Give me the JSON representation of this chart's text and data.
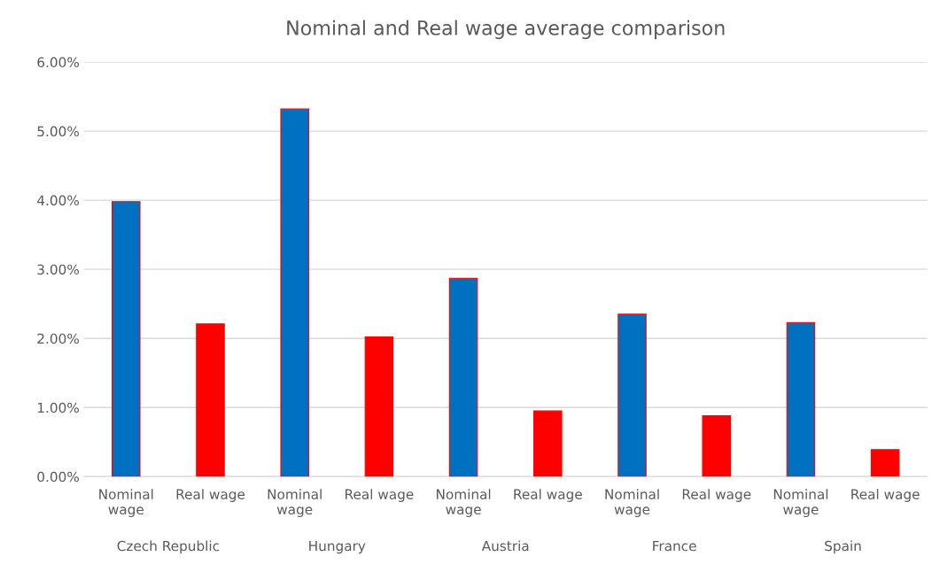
{
  "chart_data": {
    "type": "bar",
    "title": "Nominal and Real wage average comparison",
    "categories": [
      "Nominal wage",
      "Real wage",
      "Nominal wage",
      "Real wage",
      "Nominal wage",
      "Real wage",
      "Nominal wage",
      "Real wage",
      "Nominal wage",
      "Real wage"
    ],
    "values": [
      3.98,
      2.21,
      5.32,
      2.02,
      2.87,
      0.95,
      2.35,
      0.88,
      2.23,
      0.39
    ],
    "colors": [
      "#0070c0",
      "#ff0000",
      "#0070c0",
      "#ff0000",
      "#0070c0",
      "#ff0000",
      "#0070c0",
      "#ff0000",
      "#0070c0",
      "#ff0000"
    ],
    "annotations": [
      "Czech Republic",
      "Hungary",
      "Austria",
      "France",
      "Spain"
    ],
    "ylim": [
      0,
      6
    ],
    "yticks": [
      {
        "value": 0,
        "label": "0.00%"
      },
      {
        "value": 1,
        "label": "1.00%"
      },
      {
        "value": 2,
        "label": "2.00%"
      },
      {
        "value": 3,
        "label": "3.00%"
      },
      {
        "value": 4,
        "label": "4.00%"
      },
      {
        "value": 5,
        "label": "5.00%"
      },
      {
        "value": 6,
        "label": "6.00%"
      }
    ],
    "grid": "y"
  }
}
